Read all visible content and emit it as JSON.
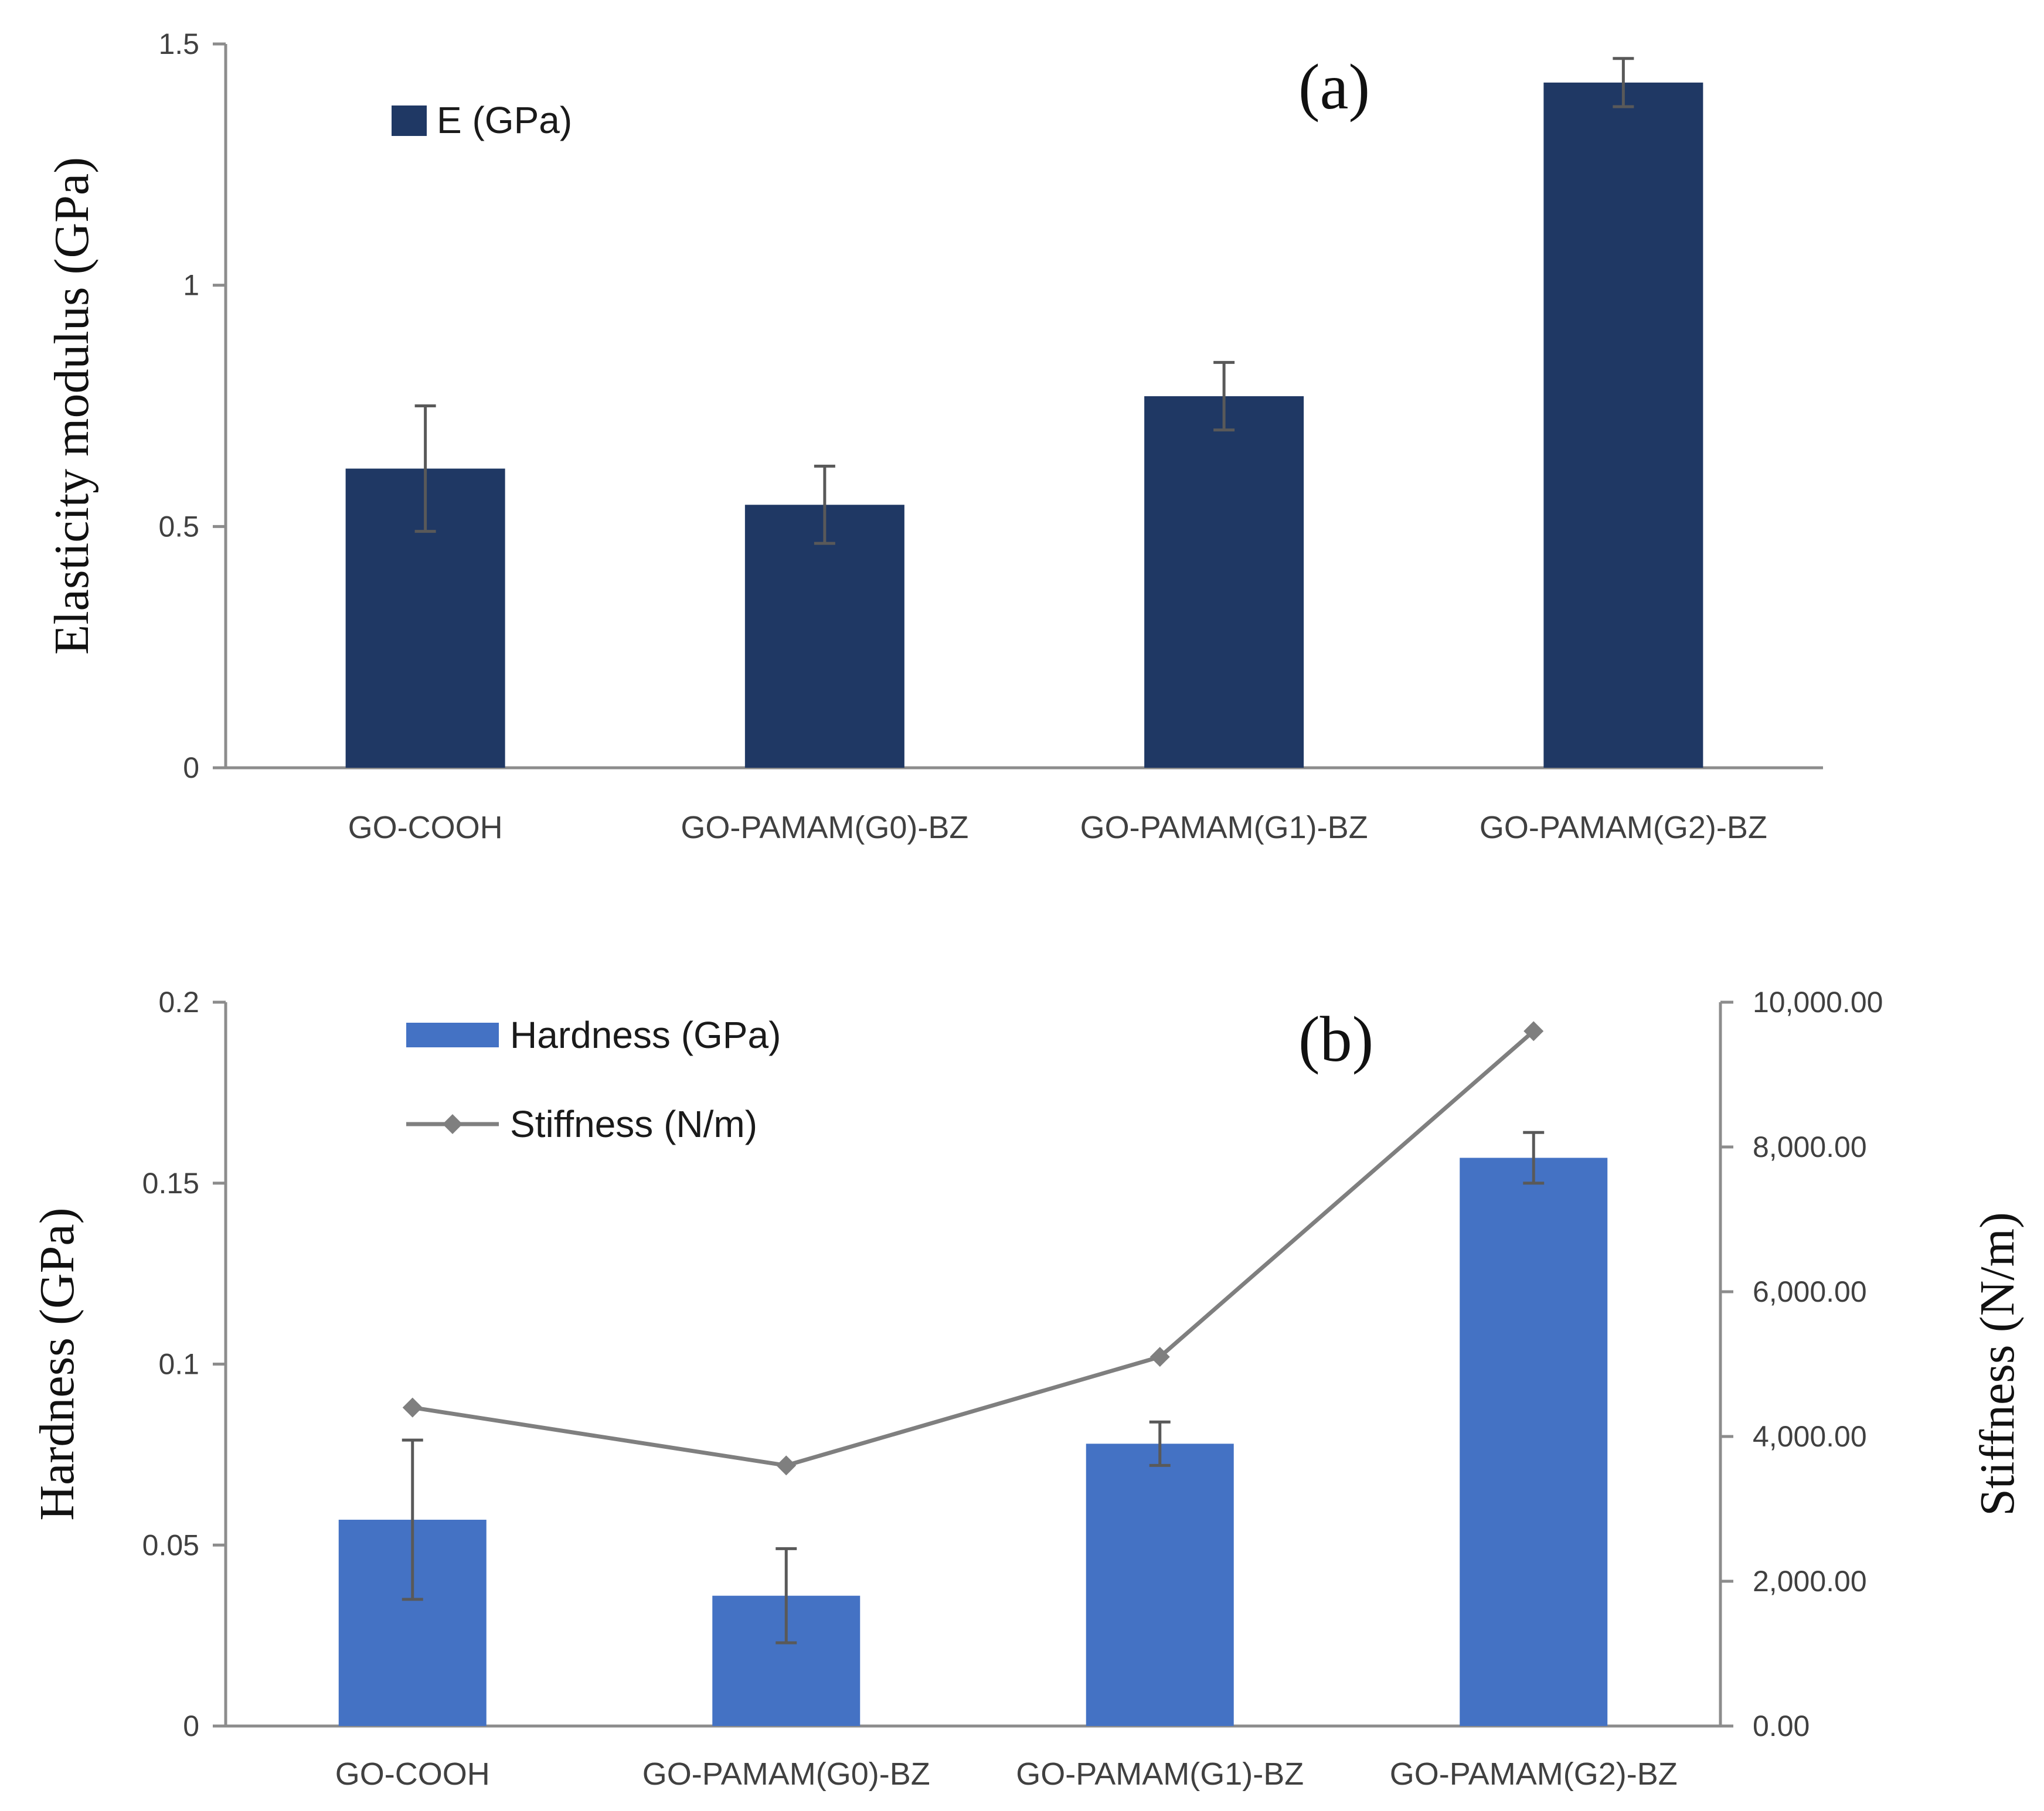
{
  "chart_data": [
    {
      "type": "bar",
      "panel_label": "(a)",
      "categories": [
        "GO-COOH",
        "GO-PAMAM(G0)-BZ",
        "GO-PAMAM(G1)-BZ",
        "GO-PAMAM(G2)-BZ"
      ],
      "series": [
        {
          "name": "E (GPa)",
          "values": [
            0.62,
            0.545,
            0.77,
            1.42
          ],
          "error": [
            0.13,
            0.08,
            0.07,
            0.05
          ]
        }
      ],
      "ylabel": "Elasticity modulus (GPa)",
      "ylim": [
        0,
        1.5
      ],
      "yticks": [
        0,
        0.5,
        1,
        1.5
      ],
      "ytick_labels": [
        "0",
        "0.5",
        "1",
        "1.5"
      ],
      "grid": false,
      "legend_position": "top-left",
      "colors": {
        "bar": "#1f3864"
      }
    },
    {
      "type": "bar+line",
      "panel_label": "(b)",
      "categories": [
        "GO-COOH",
        "GO-PAMAM(G0)-BZ",
        "GO-PAMAM(G1)-BZ",
        "GO-PAMAM(G2)-BZ"
      ],
      "series": [
        {
          "name": "Hardness (GPa)",
          "type": "bar",
          "axis": "left",
          "values": [
            0.057,
            0.036,
            0.078,
            0.157
          ],
          "error": [
            0.022,
            0.013,
            0.006,
            0.007
          ]
        },
        {
          "name": "Stiffness (N/m)",
          "type": "line",
          "axis": "right",
          "values": [
            4400,
            3600,
            5100,
            9600
          ]
        }
      ],
      "ylabel": "Hardness (GPa)",
      "ylim": [
        0,
        0.2
      ],
      "yticks": [
        0,
        0.05,
        0.1,
        0.15,
        0.2
      ],
      "ytick_labels": [
        "0",
        "0.05",
        "0.1",
        "0.15",
        "0.2"
      ],
      "y2label": "Stiffness (N/m)",
      "y2lim": [
        0,
        10000
      ],
      "y2ticks": [
        0,
        2000,
        4000,
        6000,
        8000,
        10000
      ],
      "y2tick_labels": [
        "0.00",
        "2,000.00",
        "4,000.00",
        "6,000.00",
        "8,000.00",
        "10,000.00"
      ],
      "grid": false,
      "legend_position": "top-left",
      "colors": {
        "bar": "#4472c4",
        "line": "#7f7f7f"
      }
    }
  ]
}
